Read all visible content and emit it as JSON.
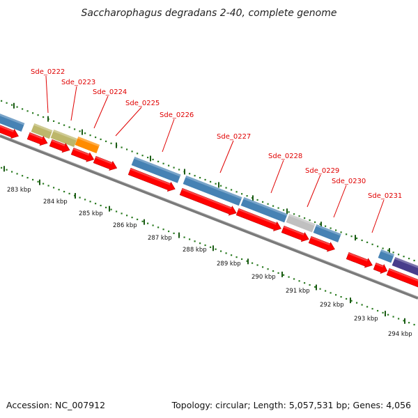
{
  "title": "Saccharophagus degradans 2-40, complete genome",
  "footer": {
    "accession": "Accession: NC_007912",
    "summary": "Topology: circular; Length: 5,057,531 bp; Genes: 4,056"
  },
  "colors": {
    "gene_label": "#e00000",
    "cds_arrow": "#ff0000",
    "backbone": "#7a7a7a",
    "tick_green": "#2a7a20",
    "tick_dark": "#1a5a14",
    "feature_blue": "#4682b4",
    "feature_khaki": "#bdb76b",
    "feature_orange": "#ff8c00",
    "feature_gray": "#c0c0c0",
    "feature_purple": "#483d8b"
  },
  "gene_labels": [
    "Sde_0222",
    "Sde_0223",
    "Sde_0224",
    "Sde_0225",
    "Sde_0226",
    "Sde_0227",
    "Sde_0228",
    "Sde_0229",
    "Sde_0230",
    "Sde_0231"
  ],
  "kbp_labels": [
    "283 kbp",
    "284 kbp",
    "285 kbp",
    "286 kbp",
    "287 kbp",
    "288 kbp",
    "289 kbp",
    "290 kbp",
    "291 kbp",
    "292 kbp",
    "293 kbp",
    "294 kbp"
  ]
}
